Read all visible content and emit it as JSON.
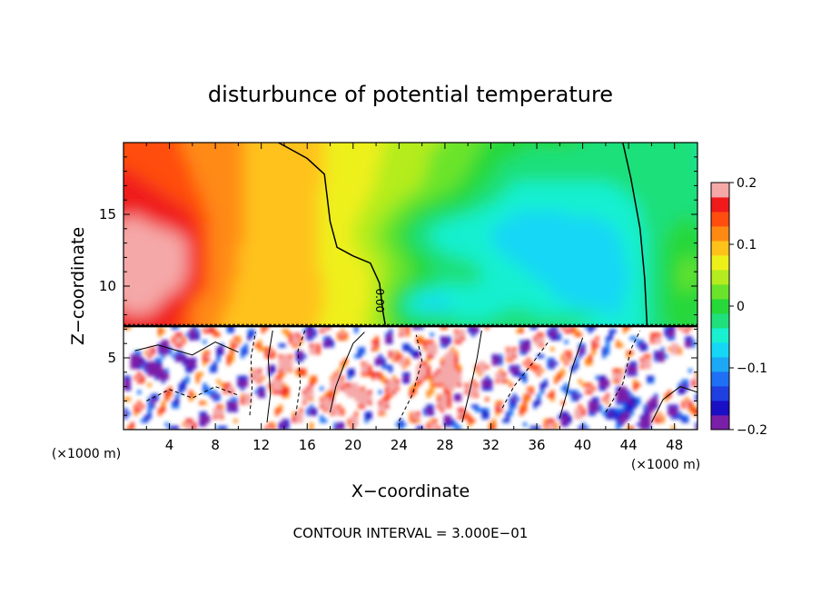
{
  "chart_data": {
    "type": "heatmap",
    "title": "disturbunce of potential temperature",
    "xlabel": "X−coordinate",
    "ylabel": "Z−coordinate",
    "x_unit_label_left": "(×1000 m)",
    "x_unit_label_right": "(×1000 m)",
    "xlim": [
      0,
      50
    ],
    "ylim": [
      0,
      20
    ],
    "x_ticks": [
      4,
      8,
      12,
      16,
      20,
      24,
      28,
      32,
      36,
      40,
      44,
      48
    ],
    "y_ticks": [
      5,
      10,
      15
    ],
    "footer": "CONTOUR INTERVAL = 3.000E−01",
    "contour_label": "0.00",
    "colorbar": {
      "min": -0.2,
      "max": 0.2,
      "tick_values": [
        0.2,
        0.1,
        0,
        -0.1,
        -0.2
      ],
      "tick_labels": [
        "0.2",
        "0.1",
        "0",
        "−0.1",
        "−0.2"
      ],
      "levels": [
        {
          "value": -0.2,
          "color": "#7a1fa8"
        },
        {
          "value": -0.175,
          "color": "#1a0fc4"
        },
        {
          "value": -0.15,
          "color": "#1f3fe0"
        },
        {
          "value": -0.125,
          "color": "#1f70f5"
        },
        {
          "value": -0.1,
          "color": "#1ca8f5"
        },
        {
          "value": -0.075,
          "color": "#15d7f5"
        },
        {
          "value": -0.05,
          "color": "#18f0d0"
        },
        {
          "value": -0.025,
          "color": "#1fe07a"
        },
        {
          "value": 0,
          "color": "#27d83a"
        },
        {
          "value": 0.025,
          "color": "#6ae42a"
        },
        {
          "value": 0.05,
          "color": "#b4ec1f"
        },
        {
          "value": 0.075,
          "color": "#eef01a"
        },
        {
          "value": 0.1,
          "color": "#ffc21a"
        },
        {
          "value": 0.125,
          "color": "#ff8a12"
        },
        {
          "value": 0.15,
          "color": "#ff4d10"
        },
        {
          "value": 0.175,
          "color": "#f01a1a"
        },
        {
          "value": 0.2,
          "color": "#f5a8a8"
        }
      ]
    },
    "interface_z": 7.2
  }
}
